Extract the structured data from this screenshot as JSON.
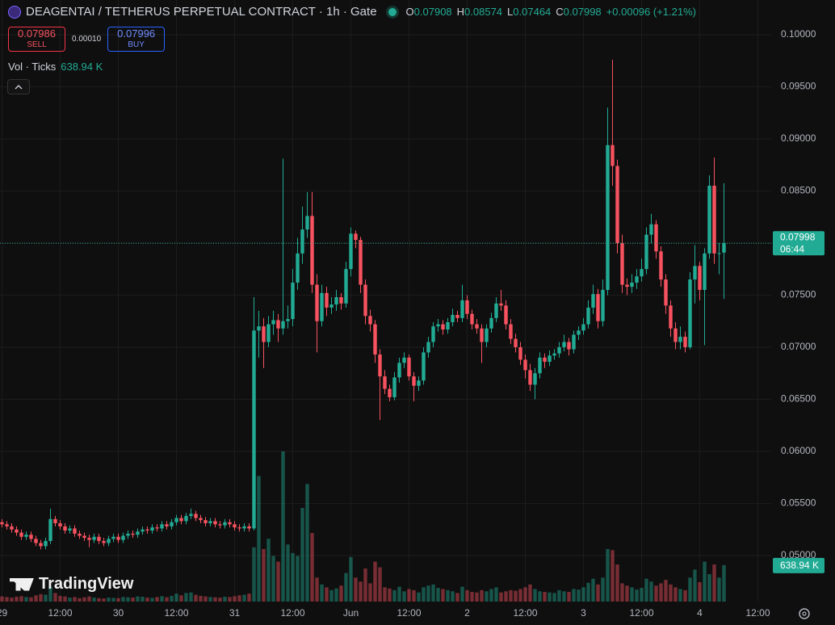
{
  "chart_data": {
    "type": "candlestick",
    "title": "DEAGENTAI / TETHERUS PERPETUAL CONTRACT · 1h · Gate",
    "ohlc_letters": [
      "O",
      "H",
      "L",
      "C"
    ],
    "change": "+0.00096 (+1.21%)",
    "sell": {
      "price": 0.07986,
      "label": "SELL"
    },
    "spread": "0.00010",
    "buy": {
      "price": 0.07996,
      "label": "BUY"
    },
    "countdown": "06:44",
    "watermark": "TradingView",
    "up_color": "#22ab94",
    "down_color": "#f7525f",
    "grid": true,
    "ylim": [
      0.04558,
      0.10333
    ],
    "yticks": [
      {
        "value": 0.05,
        "label": "0.05000"
      },
      {
        "value": 0.055,
        "label": "0.05500"
      },
      {
        "value": 0.06,
        "label": "0.06000"
      },
      {
        "value": 0.065,
        "label": "0.06500"
      },
      {
        "value": 0.07,
        "label": "0.07000"
      },
      {
        "value": 0.075,
        "label": "0.07500"
      },
      {
        "value": 0.08,
        "label": "0.08000"
      },
      {
        "value": 0.085,
        "label": "0.08500"
      },
      {
        "value": 0.09,
        "label": "0.09000"
      },
      {
        "value": 0.095,
        "label": "0.09500"
      },
      {
        "value": 0.1,
        "label": "0.10000"
      }
    ],
    "xticks": [
      {
        "value": 0,
        "label": "29"
      },
      {
        "value": 12,
        "label": "12:00"
      },
      {
        "value": 24,
        "label": "30"
      },
      {
        "value": 36,
        "label": "12:00"
      },
      {
        "value": 48,
        "label": "31"
      },
      {
        "value": 60,
        "label": "12:00"
      },
      {
        "value": 72,
        "label": "Jun"
      },
      {
        "value": 84,
        "label": "12:00"
      },
      {
        "value": 96,
        "label": "2"
      },
      {
        "value": 108,
        "label": "12:00"
      },
      {
        "value": 120,
        "label": "3"
      },
      {
        "value": 132,
        "label": "12:00"
      },
      {
        "value": 144,
        "label": "4"
      },
      {
        "value": 156,
        "label": "12:00"
      }
    ],
    "candles": [
      [
        0.0532,
        0.0535,
        0.0527,
        0.053
      ],
      [
        0.053,
        0.0533,
        0.0525,
        0.0528
      ],
      [
        0.0528,
        0.0531,
        0.0522,
        0.0525
      ],
      [
        0.0525,
        0.0528,
        0.0519,
        0.0522
      ],
      [
        0.0522,
        0.0525,
        0.0515,
        0.0518
      ],
      [
        0.0518,
        0.0523,
        0.0515,
        0.052
      ],
      [
        0.052,
        0.0523,
        0.0513,
        0.0516
      ],
      [
        0.0516,
        0.0519,
        0.0509,
        0.0512
      ],
      [
        0.0512,
        0.0515,
        0.0506,
        0.0509
      ],
      [
        0.0509,
        0.0517,
        0.0506,
        0.0514
      ],
      [
        0.0514,
        0.0545,
        0.0511,
        0.0535
      ],
      [
        0.0535,
        0.0538,
        0.0528,
        0.0531
      ],
      [
        0.0531,
        0.0534,
        0.0525,
        0.0528
      ],
      [
        0.0528,
        0.0531,
        0.0521,
        0.0524
      ],
      [
        0.0524,
        0.0529,
        0.0521,
        0.0526
      ],
      [
        0.0526,
        0.0529,
        0.0518,
        0.0521
      ],
      [
        0.0521,
        0.0524,
        0.0516,
        0.0519
      ],
      [
        0.0519,
        0.0522,
        0.0514,
        0.0517
      ],
      [
        0.0517,
        0.052,
        0.0508,
        0.0515
      ],
      [
        0.0515,
        0.0521,
        0.0512,
        0.0518
      ],
      [
        0.0518,
        0.0521,
        0.0511,
        0.0514
      ],
      [
        0.0514,
        0.0517,
        0.0509,
        0.0512
      ],
      [
        0.0512,
        0.0519,
        0.0509,
        0.0516
      ],
      [
        0.0516,
        0.0521,
        0.0513,
        0.0518
      ],
      [
        0.0518,
        0.0521,
        0.0512,
        0.0515
      ],
      [
        0.0515,
        0.0522,
        0.0512,
        0.0519
      ],
      [
        0.0519,
        0.0524,
        0.0516,
        0.0521
      ],
      [
        0.0521,
        0.0524,
        0.0517,
        0.052
      ],
      [
        0.052,
        0.0526,
        0.0517,
        0.0523
      ],
      [
        0.0523,
        0.0528,
        0.052,
        0.0525
      ],
      [
        0.0525,
        0.0528,
        0.0521,
        0.0524
      ],
      [
        0.0524,
        0.053,
        0.0521,
        0.0527
      ],
      [
        0.0527,
        0.053,
        0.0523,
        0.0526
      ],
      [
        0.0526,
        0.0533,
        0.0523,
        0.053
      ],
      [
        0.053,
        0.0533,
        0.0525,
        0.0528
      ],
      [
        0.0528,
        0.0535,
        0.0525,
        0.0532
      ],
      [
        0.0532,
        0.0539,
        0.0529,
        0.0536
      ],
      [
        0.0536,
        0.0539,
        0.053,
        0.0533
      ],
      [
        0.0533,
        0.0541,
        0.053,
        0.0538
      ],
      [
        0.0538,
        0.0545,
        0.0535,
        0.054
      ],
      [
        0.054,
        0.0543,
        0.0533,
        0.0536
      ],
      [
        0.0536,
        0.0539,
        0.0531,
        0.0534
      ],
      [
        0.0534,
        0.0537,
        0.0528,
        0.0531
      ],
      [
        0.0531,
        0.0536,
        0.0528,
        0.0533
      ],
      [
        0.0533,
        0.0536,
        0.0527,
        0.053
      ],
      [
        0.053,
        0.0533,
        0.0526,
        0.0529
      ],
      [
        0.0529,
        0.0535,
        0.0526,
        0.0532
      ],
      [
        0.0532,
        0.0535,
        0.0527,
        0.053
      ],
      [
        0.053,
        0.0533,
        0.0524,
        0.0527
      ],
      [
        0.0527,
        0.053,
        0.0523,
        0.0526
      ],
      [
        0.0526,
        0.0531,
        0.0523,
        0.0528
      ],
      [
        0.0528,
        0.0531,
        0.0523,
        0.0526
      ],
      [
        0.0526,
        0.0748,
        0.0524,
        0.0716
      ],
      [
        0.0716,
        0.0735,
        0.069,
        0.072
      ],
      [
        0.072,
        0.0728,
        0.068,
        0.0705
      ],
      [
        0.0705,
        0.073,
        0.07,
        0.0722
      ],
      [
        0.0722,
        0.0735,
        0.0712,
        0.0726
      ],
      [
        0.0726,
        0.0732,
        0.0705,
        0.0718
      ],
      [
        0.0718,
        0.0881,
        0.0712,
        0.0725
      ],
      [
        0.0725,
        0.074,
        0.0718,
        0.0727
      ],
      [
        0.0727,
        0.0775,
        0.072,
        0.0762
      ],
      [
        0.0762,
        0.0805,
        0.0755,
        0.079
      ],
      [
        0.079,
        0.0835,
        0.078,
        0.0813
      ],
      [
        0.0813,
        0.0849,
        0.0805,
        0.0826
      ],
      [
        0.0826,
        0.0849,
        0.0752,
        0.076
      ],
      [
        0.076,
        0.077,
        0.0695,
        0.0725
      ],
      [
        0.0725,
        0.076,
        0.072,
        0.0752
      ],
      [
        0.0752,
        0.0758,
        0.073,
        0.0738
      ],
      [
        0.0738,
        0.0748,
        0.0732,
        0.0741
      ],
      [
        0.0741,
        0.0755,
        0.0735,
        0.0748
      ],
      [
        0.0748,
        0.0752,
        0.0736,
        0.0742
      ],
      [
        0.0742,
        0.0782,
        0.0738,
        0.0775
      ],
      [
        0.0775,
        0.0815,
        0.0768,
        0.0809
      ],
      [
        0.0809,
        0.0812,
        0.0795,
        0.0803
      ],
      [
        0.0803,
        0.0806,
        0.0752,
        0.076
      ],
      [
        0.076,
        0.0765,
        0.0722,
        0.073
      ],
      [
        0.073,
        0.0736,
        0.0715,
        0.0722
      ],
      [
        0.0722,
        0.0726,
        0.0685,
        0.0693
      ],
      [
        0.0693,
        0.0698,
        0.063,
        0.0672
      ],
      [
        0.0672,
        0.0678,
        0.0655,
        0.066
      ],
      [
        0.066,
        0.0664,
        0.0648,
        0.0652
      ],
      [
        0.0652,
        0.0676,
        0.0649,
        0.0671
      ],
      [
        0.0671,
        0.069,
        0.0666,
        0.0685
      ],
      [
        0.0685,
        0.0695,
        0.068,
        0.069
      ],
      [
        0.069,
        0.0693,
        0.0668,
        0.0672
      ],
      [
        0.0672,
        0.0676,
        0.0648,
        0.0663
      ],
      [
        0.0663,
        0.0672,
        0.0658,
        0.0668
      ],
      [
        0.0668,
        0.07,
        0.0664,
        0.0695
      ],
      [
        0.0695,
        0.071,
        0.069,
        0.0705
      ],
      [
        0.0705,
        0.0724,
        0.07,
        0.072
      ],
      [
        0.072,
        0.0727,
        0.0715,
        0.0722
      ],
      [
        0.0722,
        0.0726,
        0.0712,
        0.0717
      ],
      [
        0.0717,
        0.0728,
        0.0713,
        0.0724
      ],
      [
        0.0724,
        0.0737,
        0.072,
        0.0731
      ],
      [
        0.0731,
        0.0735,
        0.0724,
        0.0728
      ],
      [
        0.0728,
        0.076,
        0.0724,
        0.0745
      ],
      [
        0.0745,
        0.075,
        0.0727,
        0.0732
      ],
      [
        0.0732,
        0.0736,
        0.0717,
        0.0722
      ],
      [
        0.0722,
        0.0727,
        0.0713,
        0.0718
      ],
      [
        0.0718,
        0.0722,
        0.0685,
        0.0705
      ],
      [
        0.0705,
        0.0722,
        0.07,
        0.0718
      ],
      [
        0.0718,
        0.0733,
        0.0714,
        0.0728
      ],
      [
        0.0728,
        0.0748,
        0.0724,
        0.0742
      ],
      [
        0.0742,
        0.0755,
        0.0735,
        0.074
      ],
      [
        0.074,
        0.0745,
        0.0717,
        0.0722
      ],
      [
        0.0722,
        0.0727,
        0.0703,
        0.0708
      ],
      [
        0.0708,
        0.0713,
        0.0695,
        0.07
      ],
      [
        0.07,
        0.0705,
        0.0683,
        0.0688
      ],
      [
        0.0688,
        0.0693,
        0.067,
        0.0678
      ],
      [
        0.0678,
        0.0684,
        0.0658,
        0.0664
      ],
      [
        0.0664,
        0.068,
        0.065,
        0.0675
      ],
      [
        0.0675,
        0.0695,
        0.067,
        0.069
      ],
      [
        0.069,
        0.0694,
        0.068,
        0.0686
      ],
      [
        0.0686,
        0.0697,
        0.0682,
        0.0692
      ],
      [
        0.0692,
        0.0698,
        0.0688,
        0.0694
      ],
      [
        0.0694,
        0.0705,
        0.069,
        0.07
      ],
      [
        0.07,
        0.0712,
        0.0696,
        0.0705
      ],
      [
        0.0705,
        0.0709,
        0.0692,
        0.0698
      ],
      [
        0.0698,
        0.0716,
        0.0694,
        0.0712
      ],
      [
        0.0712,
        0.072,
        0.0707,
        0.0716
      ],
      [
        0.0716,
        0.0728,
        0.0712,
        0.0722
      ],
      [
        0.0722,
        0.0745,
        0.0718,
        0.0738
      ],
      [
        0.0738,
        0.076,
        0.0732,
        0.0751
      ],
      [
        0.0751,
        0.0756,
        0.0718,
        0.0725
      ],
      [
        0.0725,
        0.0765,
        0.072,
        0.0755
      ],
      [
        0.0755,
        0.093,
        0.075,
        0.0894
      ],
      [
        0.0894,
        0.0976,
        0.0855,
        0.0874
      ],
      [
        0.0874,
        0.088,
        0.079,
        0.08
      ],
      [
        0.08,
        0.0808,
        0.0752,
        0.076
      ],
      [
        0.076,
        0.0766,
        0.075,
        0.0758
      ],
      [
        0.0758,
        0.077,
        0.0752,
        0.0762
      ],
      [
        0.0762,
        0.0775,
        0.0756,
        0.0768
      ],
      [
        0.0768,
        0.0785,
        0.0763,
        0.0775
      ],
      [
        0.0775,
        0.0815,
        0.077,
        0.0808
      ],
      [
        0.0808,
        0.0828,
        0.08,
        0.0818
      ],
      [
        0.0818,
        0.0822,
        0.0785,
        0.0792
      ],
      [
        0.0792,
        0.0797,
        0.0758,
        0.0765
      ],
      [
        0.0765,
        0.077,
        0.0732,
        0.074
      ],
      [
        0.074,
        0.0745,
        0.071,
        0.0718
      ],
      [
        0.0718,
        0.0724,
        0.0698,
        0.0705
      ],
      [
        0.0705,
        0.072,
        0.0698,
        0.071
      ],
      [
        0.071,
        0.0715,
        0.0695,
        0.07
      ],
      [
        0.07,
        0.0772,
        0.0698,
        0.0765
      ],
      [
        0.0765,
        0.0798,
        0.0742,
        0.0778
      ],
      [
        0.0778,
        0.0782,
        0.0745,
        0.0755
      ],
      [
        0.0755,
        0.0795,
        0.0702,
        0.079
      ],
      [
        0.079,
        0.0865,
        0.0785,
        0.0855
      ],
      [
        0.0855,
        0.0882,
        0.078,
        0.079
      ],
      [
        0.079,
        0.08,
        0.077,
        0.07902
      ],
      [
        0.07908,
        0.08574,
        0.07464,
        0.07998
      ]
    ],
    "volume": {
      "name": "Vol · Ticks",
      "last_label": "638.94 K",
      "values": [
        90,
        80,
        70,
        85,
        95,
        80,
        75,
        110,
        130,
        120,
        260,
        150,
        100,
        90,
        70,
        80,
        60,
        75,
        90,
        70,
        60,
        55,
        70,
        65,
        60,
        80,
        75,
        70,
        90,
        85,
        70,
        65,
        80,
        95,
        75,
        100,
        140,
        110,
        150,
        160,
        120,
        100,
        90,
        80,
        75,
        70,
        85,
        80,
        95,
        110,
        120,
        140,
        950,
        2200,
        920,
        1100,
        800,
        700,
        2630,
        1000,
        850,
        800,
        1640,
        2060,
        1200,
        420,
        300,
        250,
        200,
        230,
        280,
        500,
        780,
        420,
        350,
        580,
        320,
        700,
        600,
        250,
        230,
        200,
        260,
        180,
        220,
        200,
        160,
        250,
        280,
        300,
        240,
        220,
        200,
        180,
        150,
        260,
        200,
        170,
        160,
        200,
        180,
        220,
        250,
        160,
        180,
        200,
        190,
        220,
        250,
        300,
        220,
        180,
        170,
        160,
        150,
        200,
        180,
        170,
        220,
        210,
        250,
        330,
        400,
        300,
        420,
        920,
        900,
        650,
        320,
        280,
        250,
        210,
        240,
        400,
        350,
        280,
        320,
        380,
        300,
        250,
        220,
        200,
        420,
        560,
        340,
        700,
        480,
        650,
        420,
        638.94
      ]
    }
  }
}
